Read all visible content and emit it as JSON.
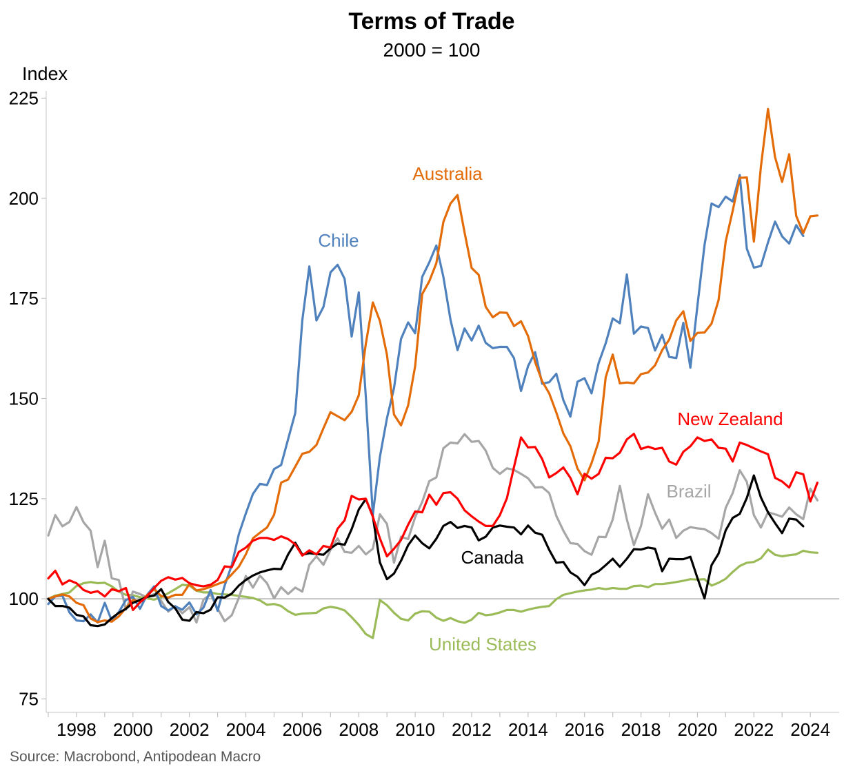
{
  "chart_data": {
    "type": "line",
    "title": "Terms of Trade",
    "subtitle": "2000 = 100",
    "ylabel": "Index",
    "source": "Source: Macrobond, Antipodean Macro",
    "ylim": [
      75,
      225
    ],
    "yticks": [
      75,
      100,
      125,
      150,
      175,
      200,
      225
    ],
    "xlim": [
      1997.0,
      2024.9
    ],
    "xticks": [
      1998,
      2000,
      2002,
      2004,
      2006,
      2008,
      2010,
      2012,
      2014,
      2016,
      2018,
      2020,
      2022,
      2024
    ],
    "reference_line": 100,
    "x_start": 1997.0,
    "x_step": 0.25,
    "series": [
      {
        "name": "Chile",
        "label": "Chile",
        "color": "#4F81BD",
        "values": [
          98.7,
          100.6,
          100.8,
          96.6,
          94.6,
          94.4,
          96.1,
          94.1,
          99.0,
          94.5,
          96.7,
          99.7,
          100.5,
          97.5,
          101.0,
          103.1,
          98.2,
          97.1,
          98.1,
          97.3,
          99.1,
          96.1,
          97.8,
          102.2,
          97.0,
          103.3,
          108.4,
          116.1,
          121.3,
          126.2,
          128.7,
          128.4,
          132.4,
          133.4,
          139.9,
          146.4,
          169.5,
          183.0,
          169.5,
          172.9,
          181.5,
          183.4,
          179.9,
          165.5,
          176.5,
          150.5,
          121.0,
          135.4,
          145.1,
          152.6,
          164.9,
          169.0,
          166.3,
          180.4,
          184.0,
          188.2,
          180.4,
          169.7,
          162.1,
          167.5,
          164.5,
          168.2,
          163.9,
          162.6,
          162.9,
          162.9,
          160.1,
          151.9,
          158.1,
          161.6,
          153.7,
          154.1,
          156.2,
          149.6,
          145.5,
          154.2,
          155.1,
          151.3,
          158.9,
          163.8,
          170.0,
          168.8,
          181.0,
          166.2,
          168.0,
          167.6,
          162.0,
          165.9,
          160.4,
          160.1,
          168.9,
          157.7,
          173.1,
          188.3,
          198.7,
          197.8,
          200.4,
          199.2,
          205.8,
          187.4,
          182.7,
          183.1,
          189.0,
          194.2,
          190.5,
          188.7,
          193.3,
          190.6
        ]
      },
      {
        "name": "Australia",
        "label": "Australia",
        "color": "#E36C09",
        "values": [
          100.0,
          100.6,
          101.1,
          100.6,
          99.0,
          98.4,
          95.1,
          94.2,
          94.6,
          94.3,
          95.6,
          97.7,
          99.7,
          99.3,
          100.9,
          102.4,
          100.7,
          100.3,
          101.0,
          101.0,
          103.7,
          102.1,
          102.4,
          103.0,
          103.7,
          104.3,
          106.1,
          108.0,
          111.1,
          115.1,
          116.5,
          117.8,
          121.0,
          129.0,
          129.8,
          133.0,
          136.2,
          136.7,
          138.4,
          142.6,
          146.6,
          145.6,
          144.6,
          146.7,
          150.8,
          163.6,
          174.0,
          169.4,
          160.9,
          146.0,
          143.3,
          148.3,
          158.1,
          176.1,
          179.3,
          183.8,
          194.1,
          198.7,
          200.8,
          191.5,
          182.6,
          180.9,
          172.9,
          170.3,
          171.5,
          171.4,
          168.1,
          169.3,
          165.6,
          159.1,
          154.3,
          151.3,
          146.5,
          141.3,
          138.1,
          132.5,
          129.6,
          133.9,
          139.3,
          155.3,
          161.0,
          153.8,
          154.0,
          153.8,
          156.1,
          156.5,
          158.3,
          162.1,
          164.7,
          169.5,
          171.8,
          164.4,
          166.4,
          166.5,
          168.7,
          174.6,
          189.2,
          196.9,
          205.1,
          205.2,
          189.2,
          207.9,
          222.3,
          210.3,
          204.1,
          211.0,
          195.6,
          191.3,
          195.5,
          195.7
        ]
      },
      {
        "name": "New Zealand",
        "label": "New Zealand",
        "color": "#FF0000",
        "values": [
          105.1,
          107.0,
          103.6,
          104.6,
          103.9,
          102.2,
          101.5,
          101.9,
          100.6,
          102.4,
          101.9,
          102.7,
          97.2,
          99.1,
          100.6,
          102.7,
          104.5,
          105.4,
          104.8,
          105.2,
          103.9,
          103.4,
          103.1,
          103.5,
          104.7,
          108.1,
          107.9,
          111.7,
          112.8,
          114.5,
          115.2,
          115.2,
          114.7,
          115.6,
          114.9,
          113.6,
          110.8,
          112.1,
          111.1,
          113.2,
          112.8,
          117.5,
          119.6,
          125.7,
          124.8,
          125.0,
          120.5,
          115.1,
          110.6,
          112.5,
          114.7,
          118.5,
          121.8,
          121.6,
          126.0,
          123.5,
          126.4,
          126.6,
          125.0,
          122.1,
          120.6,
          119.3,
          118.2,
          118.2,
          120.9,
          125.1,
          132.9,
          140.3,
          137.8,
          137.9,
          134.9,
          130.3,
          131.4,
          132.8,
          130.2,
          126.1,
          131.2,
          130.0,
          131.2,
          135.2,
          135.1,
          136.5,
          139.8,
          141.2,
          137.4,
          138.0,
          137.4,
          137.7,
          134.3,
          133.5,
          136.7,
          138.1,
          140.3,
          139.4,
          139.8,
          137.7,
          137.5,
          134.3,
          139.0,
          138.4,
          137.6,
          136.8,
          136.1,
          130.2,
          129.3,
          127.8,
          131.6,
          131.1,
          124.3,
          129.0
        ]
      },
      {
        "name": "Brazil",
        "label": "Brazil",
        "color": "#A6A6A6",
        "values": [
          115.8,
          120.9,
          118.1,
          119.2,
          122.9,
          119.1,
          117.0,
          107.9,
          114.5,
          105.1,
          104.7,
          97.3,
          101.8,
          101.2,
          100.3,
          101.2,
          99.5,
          96.8,
          98.2,
          96.4,
          97.9,
          94.1,
          99.8,
          101.1,
          97.6,
          94.4,
          95.9,
          100.2,
          105.7,
          102.8,
          105.8,
          103.9,
          100.1,
          102.9,
          101.2,
          102.8,
          101.8,
          108.5,
          110.6,
          108.5,
          112.2,
          115.1,
          111.7,
          111.5,
          113.2,
          111.1,
          112.5,
          121.1,
          118.7,
          109.0,
          115.5,
          114.9,
          120.4,
          124.2,
          129.4,
          130.3,
          137.6,
          139.0,
          138.8,
          141.1,
          139.2,
          139.4,
          137.0,
          132.7,
          131.2,
          132.6,
          132.2,
          131.2,
          130.1,
          127.8,
          127.9,
          126.4,
          120.7,
          117.0,
          113.9,
          113.7,
          111.9,
          111.0,
          115.5,
          115.4,
          119.8,
          128.2,
          119.8,
          113.4,
          118.2,
          126.1,
          121.5,
          117.5,
          119.8,
          115.2,
          117.0,
          117.9,
          117.6,
          117.4,
          116.4,
          115.0,
          122.7,
          126.4,
          132.1,
          129.2,
          120.9,
          117.8,
          121.6,
          121.1,
          120.5,
          122.8,
          121.1,
          119.9,
          127.5,
          124.6
        ]
      },
      {
        "name": "Canada",
        "label": "Canada",
        "color": "#000000",
        "values": [
          100.0,
          98.2,
          98.2,
          97.8,
          96.0,
          95.6,
          93.4,
          93.2,
          93.6,
          95.2,
          96.5,
          97.5,
          99.0,
          99.7,
          100.5,
          100.8,
          102.4,
          99.2,
          97.6,
          94.8,
          94.5,
          96.7,
          96.4,
          97.3,
          100.4,
          100.3,
          101.3,
          103.3,
          104.7,
          105.8,
          106.6,
          107.1,
          107.5,
          107.4,
          111.1,
          114.0,
          111.0,
          111.4,
          111.2,
          111.0,
          112.6,
          113.8,
          113.5,
          117.4,
          122.3,
          124.9,
          120.6,
          109.1,
          104.9,
          106.3,
          109.5,
          113.4,
          115.8,
          113.9,
          112.6,
          115.0,
          118.2,
          119.2,
          117.7,
          118.2,
          117.8,
          114.6,
          115.5,
          117.8,
          118.3,
          118.0,
          117.8,
          116.1,
          118.3,
          116.5,
          116.0,
          112.2,
          109.0,
          109.2,
          106.6,
          105.5,
          103.4,
          106.0,
          106.9,
          108.4,
          110.0,
          108.0,
          110.0,
          112.4,
          112.3,
          112.8,
          112.5,
          106.9,
          110.0,
          109.9,
          109.9,
          110.5,
          105.2,
          100.1,
          108.4,
          111.3,
          117.1,
          120.2,
          121.2,
          125.2,
          130.8,
          125.3,
          121.6,
          118.9,
          116.4,
          120.0,
          119.8,
          118.1
        ]
      },
      {
        "name": "United States",
        "label": "United States",
        "color": "#9BBB59",
        "values": [
          100.0,
          100.8,
          101.2,
          101.6,
          103.2,
          103.9,
          104.2,
          103.9,
          104.0,
          103.1,
          101.8,
          101.0,
          100.9,
          100.4,
          100.1,
          99.8,
          100.4,
          101.4,
          102.4,
          103.5,
          103.3,
          102.0,
          101.6,
          101.6,
          101.2,
          101.1,
          101.0,
          100.7,
          100.5,
          100.2,
          99.6,
          98.5,
          98.7,
          98.2,
          96.9,
          96.0,
          96.3,
          96.4,
          96.5,
          97.6,
          98.0,
          97.7,
          97.1,
          95.4,
          93.5,
          91.2,
          90.2,
          99.7,
          98.4,
          96.5,
          95.0,
          94.6,
          96.3,
          96.9,
          96.8,
          95.3,
          94.5,
          95.2,
          94.4,
          94.0,
          94.8,
          96.5,
          95.9,
          96.1,
          96.6,
          97.2,
          97.2,
          96.8,
          97.3,
          97.7,
          98.0,
          98.2,
          99.9,
          101.0,
          101.4,
          101.8,
          102.1,
          102.3,
          102.7,
          102.4,
          102.7,
          102.5,
          102.5,
          103.2,
          103.3,
          102.9,
          103.7,
          103.7,
          103.9,
          104.2,
          104.5,
          104.9,
          104.8,
          104.9,
          103.3,
          104.0,
          105.0,
          106.7,
          108.2,
          109.0,
          109.2,
          110.1,
          112.3,
          111.0,
          110.6,
          110.9,
          111.1,
          112.0,
          111.6,
          111.5
        ]
      }
    ]
  }
}
